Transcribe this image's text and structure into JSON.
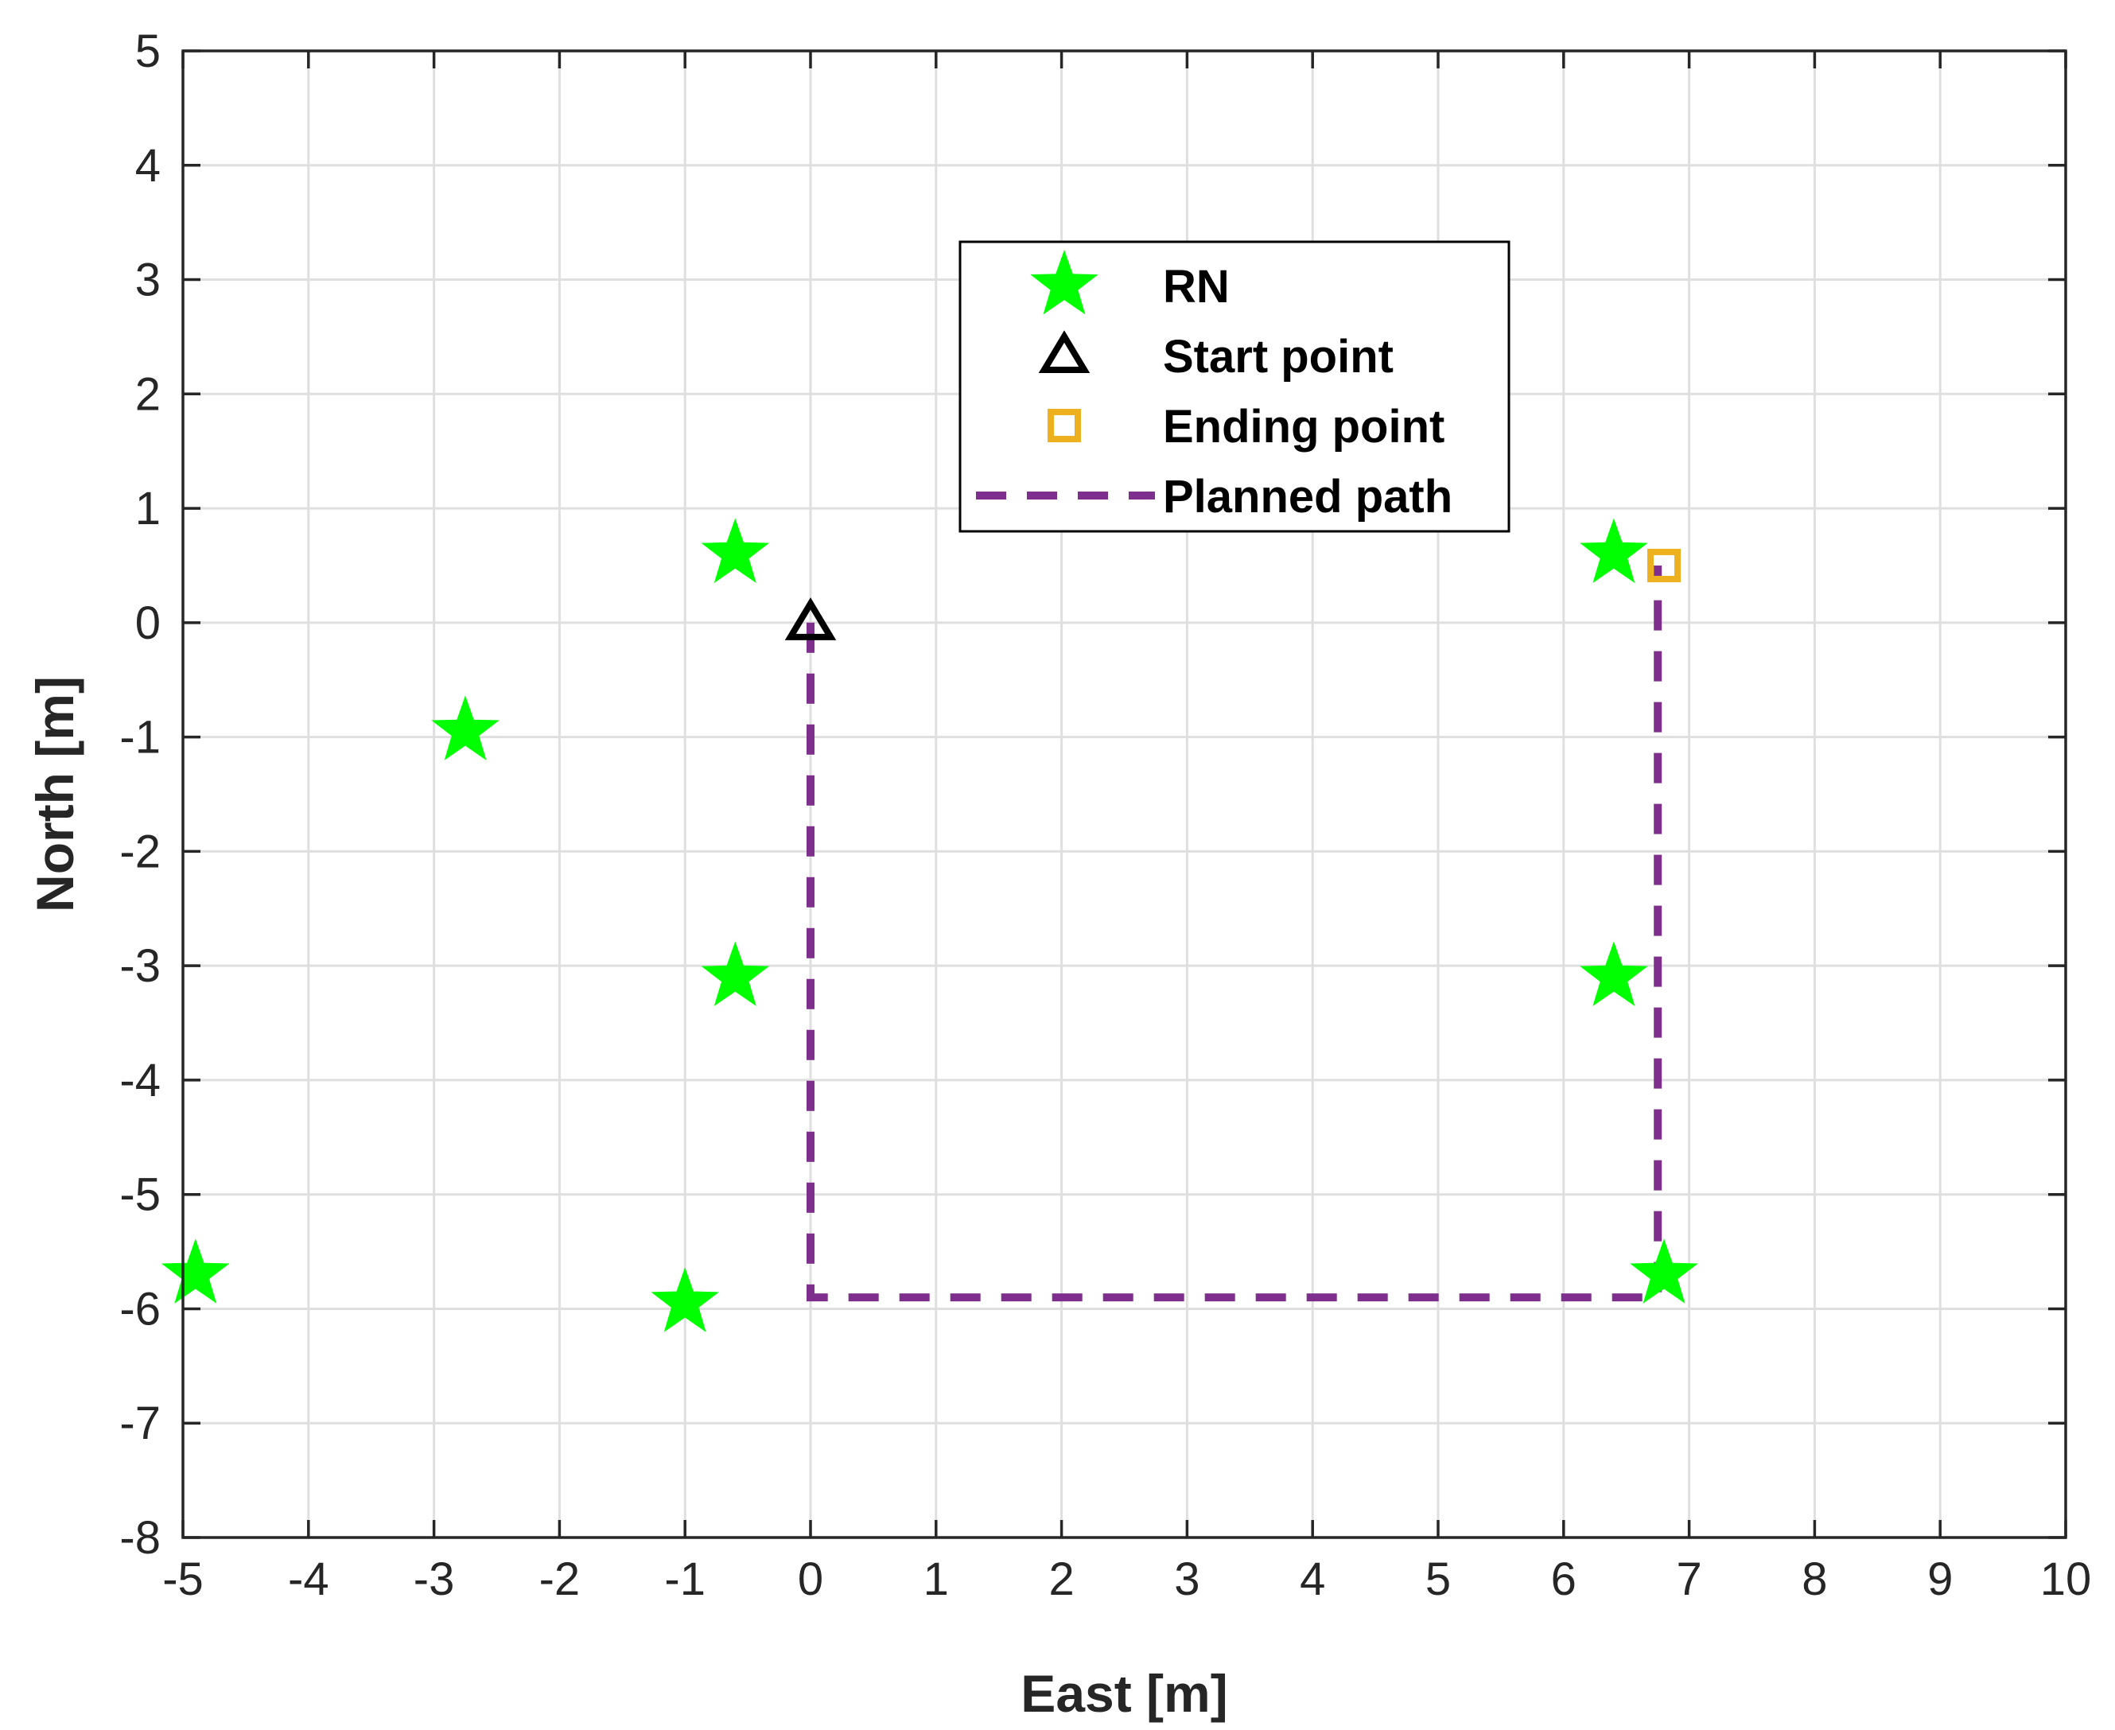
{
  "chart_data": {
    "type": "scatter",
    "xlabel": "East [m]",
    "ylabel": "North [m]",
    "xlim": [
      -5,
      10
    ],
    "ylim": [
      -8,
      5
    ],
    "xticks": [
      -5,
      -4,
      -3,
      -2,
      -1,
      0,
      1,
      2,
      3,
      4,
      5,
      6,
      7,
      8,
      9,
      10
    ],
    "yticks": [
      -8,
      -7,
      -6,
      -5,
      -4,
      -3,
      -2,
      -1,
      0,
      1,
      2,
      3,
      4,
      5
    ],
    "grid": true,
    "legend_position": "top-center",
    "series": [
      {
        "name": "RN",
        "marker": "star",
        "color": "#00ff00",
        "points": [
          {
            "x": -4.9,
            "y": -5.7
          },
          {
            "x": -2.75,
            "y": -0.95
          },
          {
            "x": -0.6,
            "y": 0.6
          },
          {
            "x": -0.6,
            "y": -3.1
          },
          {
            "x": -1.0,
            "y": -5.95
          },
          {
            "x": 6.4,
            "y": 0.6
          },
          {
            "x": 6.4,
            "y": -3.1
          },
          {
            "x": 6.8,
            "y": -5.7
          }
        ]
      },
      {
        "name": "Start point",
        "marker": "triangle",
        "color": "#000000",
        "points": [
          {
            "x": 0,
            "y": 0
          }
        ]
      },
      {
        "name": "Ending point",
        "marker": "square",
        "color": "#edb120",
        "points": [
          {
            "x": 6.8,
            "y": 0.5
          }
        ]
      },
      {
        "name": "Planned path",
        "marker": "dashed-line",
        "color": "#7e2f8e",
        "points": [
          {
            "x": 0,
            "y": 0
          },
          {
            "x": 0,
            "y": -5.9
          },
          {
            "x": 6.75,
            "y": -5.9
          },
          {
            "x": 6.75,
            "y": 0.5
          }
        ]
      }
    ]
  }
}
